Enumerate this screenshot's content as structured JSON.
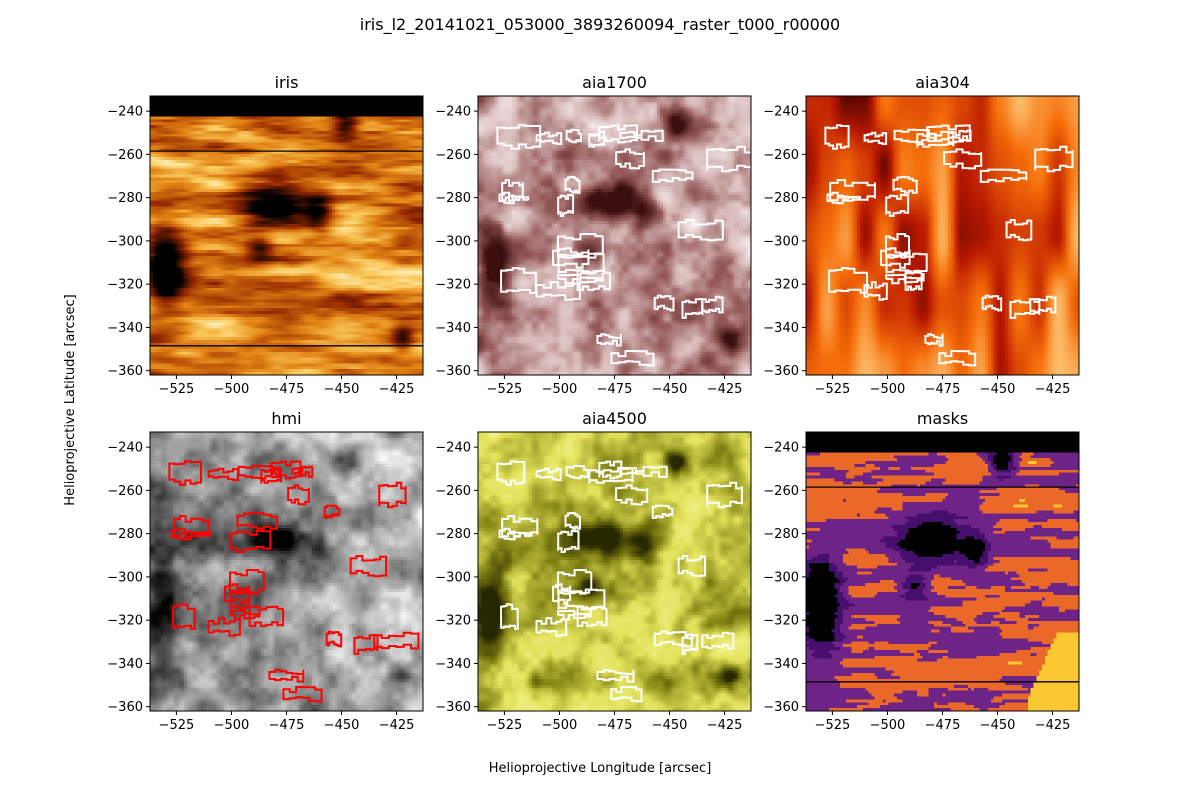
{
  "figure": {
    "suptitle": "iris_l2_20141021_053000_3893260094_raster_t000_r00000",
    "xlabel": "Helioprojective Longitude [arcsec]",
    "ylabel": "Helioprojective Latitude [arcsec]"
  },
  "colors": {
    "contour_white": "#ffffff",
    "contour_red": "#ff0000",
    "frame": "#000000"
  },
  "chart_data": [
    {
      "type": "heatmap",
      "title": "iris",
      "colormap": "afmhot",
      "xlim": [
        -537,
        -413
      ],
      "ylim": [
        -362,
        -233
      ],
      "xticks": [
        -525,
        -500,
        -475,
        -450,
        -425
      ],
      "yticks": [
        -360,
        -340,
        -320,
        -300,
        -280,
        -260,
        -240
      ],
      "contours": "none",
      "horizontal_lines_at_y": [
        -258.5,
        -348.5
      ]
    },
    {
      "type": "heatmap",
      "title": "aia1700",
      "colormap": "sdoaia1700",
      "xlim": [
        -537,
        -413
      ],
      "ylim": [
        -362,
        -233
      ],
      "xticks": [
        -525,
        -500,
        -475,
        -450,
        -425
      ],
      "yticks": [
        -360,
        -340,
        -320,
        -300,
        -280,
        -260,
        -240
      ],
      "contours": "white"
    },
    {
      "type": "heatmap",
      "title": "aia304",
      "colormap": "sdoaia304",
      "xlim": [
        -537,
        -413
      ],
      "ylim": [
        -362,
        -233
      ],
      "xticks": [
        -525,
        -500,
        -475,
        -450,
        -425
      ],
      "yticks": [
        -360,
        -340,
        -320,
        -300,
        -280,
        -260,
        -240
      ],
      "contours": "white"
    },
    {
      "type": "heatmap",
      "title": "hmi",
      "colormap": "gray",
      "xlim": [
        -537,
        -413
      ],
      "ylim": [
        -362,
        -233
      ],
      "xticks": [
        -525,
        -500,
        -475,
        -450,
        -425
      ],
      "yticks": [
        -360,
        -340,
        -320,
        -300,
        -280,
        -260,
        -240
      ],
      "contours": "red"
    },
    {
      "type": "heatmap",
      "title": "aia4500",
      "colormap": "sdoaia4500",
      "xlim": [
        -537,
        -413
      ],
      "ylim": [
        -362,
        -233
      ],
      "xticks": [
        -525,
        -500,
        -475,
        -450,
        -425
      ],
      "yticks": [
        -360,
        -340,
        -320,
        -300,
        -280,
        -260,
        -240
      ],
      "contours": "white"
    },
    {
      "type": "heatmap",
      "title": "masks",
      "colormap": "inferno",
      "xlim": [
        -537,
        -413
      ],
      "ylim": [
        -362,
        -233
      ],
      "xticks": [
        -525,
        -500,
        -475,
        -450,
        -425
      ],
      "yticks": [
        -360,
        -340,
        -320,
        -300,
        -280,
        -260,
        -240
      ],
      "contours": "none",
      "horizontal_lines_at_y": [
        -258.5,
        -348.5
      ]
    }
  ]
}
